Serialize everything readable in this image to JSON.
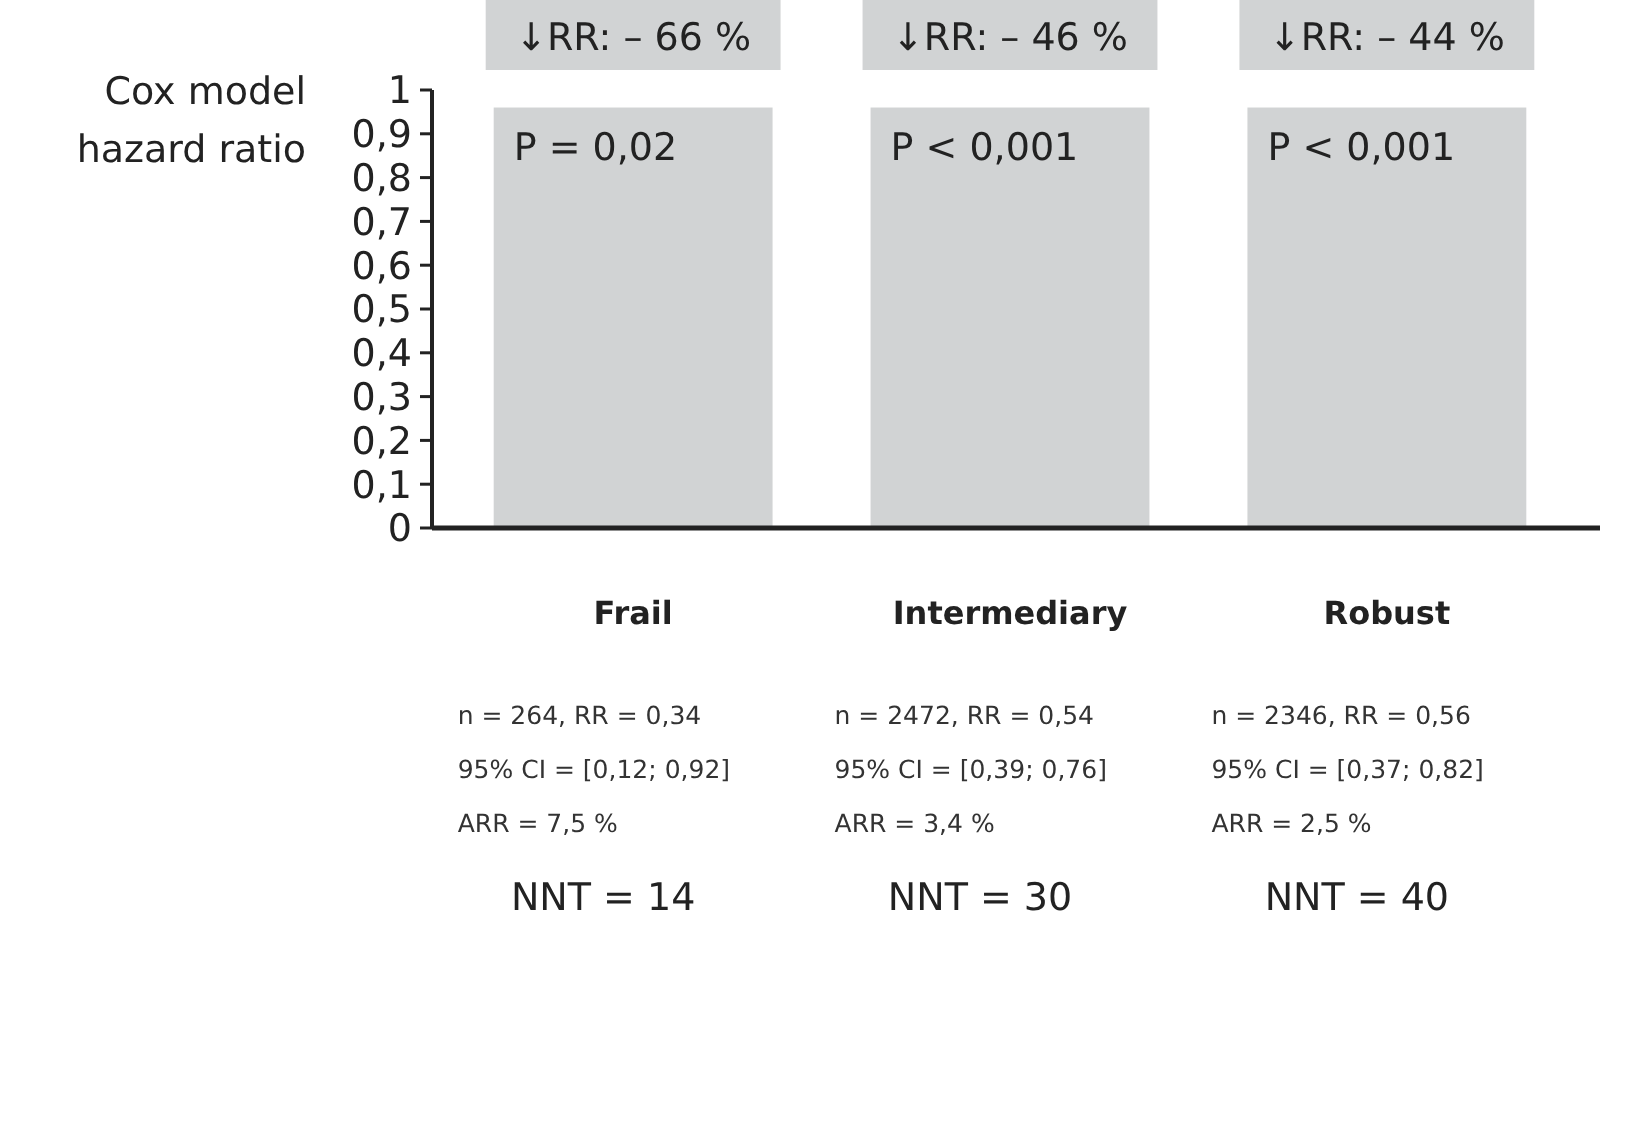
{
  "chart_data": {
    "type": "bar",
    "ylabel": "Cox model\nhazard ratio",
    "categories": [
      "Frail",
      "Intermediary",
      "Robust"
    ],
    "values": [
      0.96,
      0.96,
      0.96
    ],
    "color": "#d1d3d4",
    "ylim": [
      0,
      1
    ],
    "yticks": [
      0,
      {
        "value": 0.1,
        "label": "0,1"
      },
      {
        "value": 0.2,
        "label": "0,2"
      },
      {
        "value": 0.3,
        "label": "0,3"
      },
      {
        "value": 0.4,
        "label": "0,4"
      },
      {
        "value": 0.5,
        "label": "0,5"
      },
      {
        "value": 0.6,
        "label": "0,6"
      },
      {
        "value": 0.7,
        "label": "0,7"
      },
      {
        "value": 0.8,
        "label": "0,8"
      },
      {
        "value": 0.9,
        "label": "0,9"
      },
      1
    ],
    "annotations": [
      "↓RR: – 66 %",
      "P = 0,02",
      "n = 264, RR = 0,34",
      "95% CI = [0,12; 0,92]",
      "ARR = 7,5 %",
      "NNT = 14",
      "↓RR: – 46 %",
      "P < 0,001",
      "n = 2472, RR = 0,54",
      "95% CI = [0,39; 0,76]",
      "ARR = 3,4 %",
      "NNT = 30",
      "↓RR: – 44 %",
      "P < 0,001",
      "n = 2346, RR = 0,56",
      "95% CI = [0,37; 0,82]",
      "ARR = 2,5 %",
      "NNT = 40"
    ]
  }
}
